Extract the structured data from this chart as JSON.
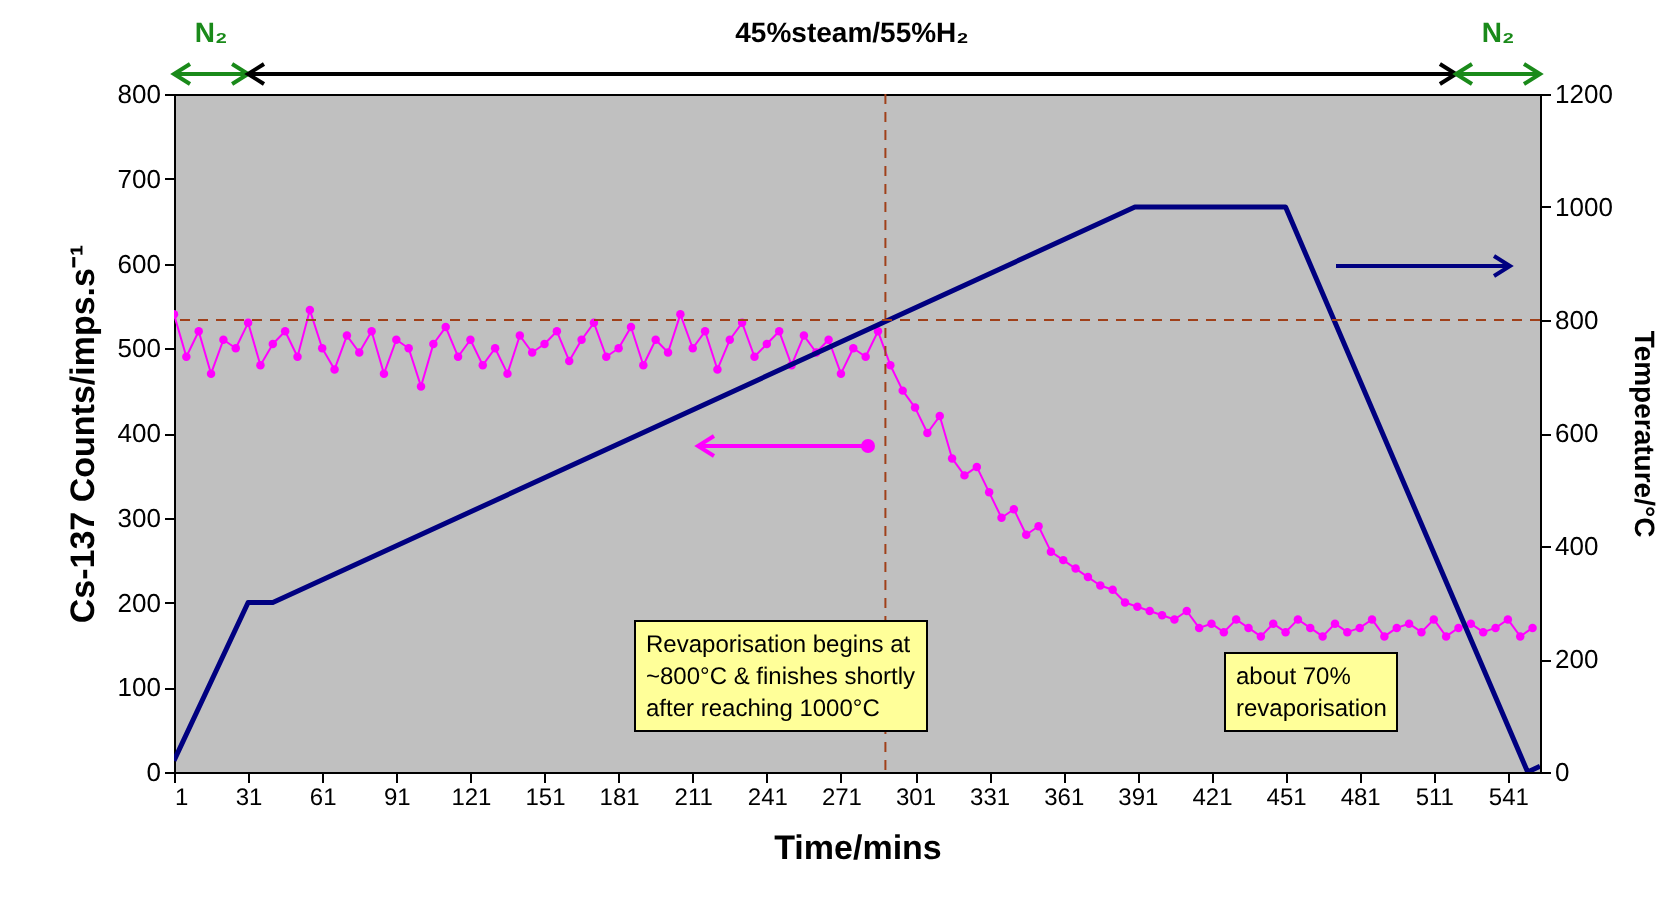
{
  "chart_data": {
    "type": "line",
    "xlabel": "Time/mins",
    "ylabel": "Cs-137 Counts/imps.s⁻¹",
    "y2label": "Temperature/°C",
    "xlim": [
      1,
      554
    ],
    "xticks": [
      1,
      31,
      61,
      91,
      121,
      151,
      181,
      211,
      241,
      271,
      301,
      331,
      361,
      391,
      421,
      451,
      481,
      511,
      541
    ],
    "ylim": [
      0,
      800
    ],
    "yticks": [
      0,
      100,
      200,
      300,
      400,
      500,
      600,
      700,
      800
    ],
    "y2lim": [
      0,
      1200
    ],
    "y2ticks": [
      0,
      200,
      400,
      600,
      800,
      1000,
      1200
    ],
    "grid": false,
    "series": [
      {
        "color": "#ff00ff",
        "marker": "circle",
        "x": [
          1,
          6,
          11,
          16,
          21,
          26,
          31,
          36,
          41,
          46,
          51,
          56,
          61,
          66,
          71,
          76,
          81,
          86,
          91,
          96,
          101,
          106,
          111,
          116,
          121,
          126,
          131,
          136,
          141,
          146,
          151,
          156,
          161,
          166,
          171,
          176,
          181,
          186,
          191,
          196,
          201,
          206,
          211,
          216,
          221,
          226,
          231,
          236,
          241,
          246,
          251,
          256,
          261,
          266,
          271,
          276,
          281,
          286,
          291,
          296,
          301,
          306,
          311,
          316,
          321,
          326,
          331,
          336,
          341,
          346,
          351,
          356,
          361,
          366,
          371,
          376,
          381,
          386,
          391,
          396,
          401,
          406,
          411,
          416,
          421,
          426,
          431,
          436,
          441,
          446,
          451,
          456,
          461,
          466,
          471,
          476,
          481,
          486,
          491,
          496,
          501,
          506,
          511,
          516,
          521,
          526,
          531,
          536,
          541,
          546,
          551
        ],
        "values": [
          540,
          490,
          520,
          470,
          510,
          500,
          530,
          480,
          505,
          520,
          490,
          545,
          500,
          475,
          515,
          495,
          520,
          470,
          510,
          500,
          455,
          505,
          525,
          490,
          510,
          480,
          500,
          470,
          515,
          495,
          505,
          520,
          485,
          510,
          530,
          490,
          500,
          525,
          480,
          510,
          495,
          540,
          500,
          520,
          475,
          510,
          530,
          490,
          505,
          520,
          480,
          515,
          495,
          510,
          470,
          500,
          490,
          520,
          480,
          450,
          430,
          400,
          420,
          370,
          350,
          360,
          330,
          300,
          310,
          280,
          290,
          260,
          250,
          240,
          230,
          220,
          215,
          200,
          195,
          190,
          185,
          180,
          190,
          170,
          175,
          165,
          180,
          170,
          160,
          175,
          165,
          180,
          170,
          160,
          175,
          165,
          170,
          180,
          160,
          170,
          175,
          165,
          180,
          160,
          170,
          175,
          165,
          170,
          180,
          160,
          170
        ]
      },
      {
        "color": "#000080",
        "marker": "none",
        "axis": "y2",
        "x": [
          1,
          31,
          41,
          390,
          451,
          549,
          554
        ],
        "values": [
          20,
          300,
          300,
          1000,
          1000,
          0,
          10
        ]
      }
    ],
    "ref_lines": [
      {
        "axis": "x",
        "value": 289,
        "color": "#a0401a",
        "line_style": "dashed"
      },
      {
        "axis": "y2",
        "value": 800,
        "color": "#a0401a",
        "line_style": "dashed"
      }
    ],
    "annotations": [
      "N₂",
      "45%steam/55%H₂",
      "N₂",
      "Revaporisation begins at ~800°C & finishes shortly after reaching 1000°C",
      "about 70% revaporisation"
    ]
  }
}
